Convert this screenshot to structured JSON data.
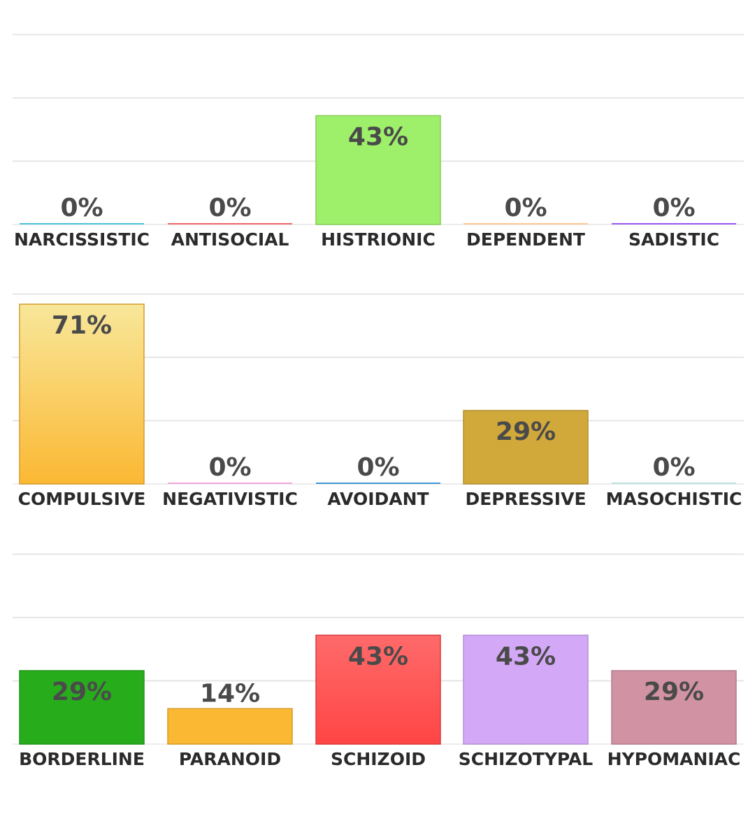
{
  "chart_data": [
    {
      "type": "bar",
      "ylim": [
        0,
        100
      ],
      "grid": true,
      "categories": [
        "NARCISSISTIC",
        "ANTISOCIAL",
        "HISTRIONIC",
        "DEPENDENT",
        "SADISTIC"
      ],
      "values": [
        0,
        0,
        43,
        0,
        0
      ],
      "value_labels": [
        "0%",
        "0%",
        "43%",
        "0%",
        "0%"
      ],
      "colors": [
        "#4cc3d9",
        "#ef6b6b",
        "#9ef06a",
        "#ffc896",
        "#9a5cf0"
      ]
    },
    {
      "type": "bar",
      "ylim": [
        0,
        100
      ],
      "grid": true,
      "categories": [
        "COMPULSIVE",
        "NEGATIVISTIC",
        "AVOIDANT",
        "DEPRESSIVE",
        "MASOCHISTIC"
      ],
      "values": [
        71,
        0,
        0,
        29,
        0
      ],
      "value_labels": [
        "71%",
        "0%",
        "0%",
        "29%",
        "0%"
      ],
      "colors": [
        "#fbb833",
        "#f4a7dc",
        "#3f97d6",
        "#d1a83a",
        "#b7e0dd"
      ],
      "gradient_tops": [
        "#f8e79a",
        null,
        null,
        null,
        null
      ]
    },
    {
      "type": "bar",
      "ylim": [
        0,
        100
      ],
      "grid": true,
      "categories": [
        "BORDERLINE",
        "PARANOID",
        "SCHIZOID",
        "SCHIZOTYPAL",
        "HYPOMANIAC"
      ],
      "values": [
        29,
        14,
        43,
        43,
        29
      ],
      "value_labels": [
        "29%",
        "14%",
        "43%",
        "43%",
        "29%"
      ],
      "colors": [
        "#27ad1c",
        "#fbb833",
        "#ff4545",
        "#d3a9f7",
        "#d192a3"
      ],
      "gradient_tops": [
        null,
        null,
        "#ff6a6a",
        null,
        null
      ]
    }
  ]
}
